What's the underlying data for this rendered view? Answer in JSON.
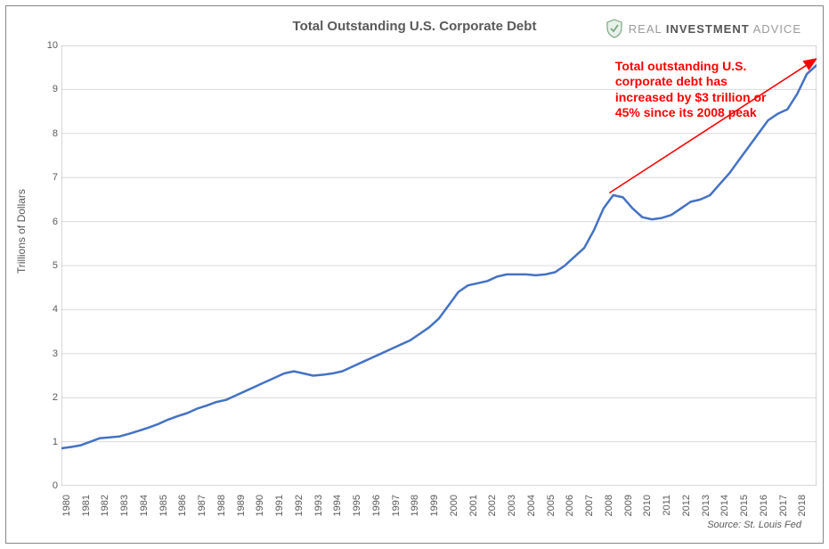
{
  "chart": {
    "type": "line",
    "title": "Total Outstanding U.S. Corporate Debt",
    "title_fontsize": 15,
    "title_color": "#5a5a5a",
    "ylabel": "Trillions of Dollars",
    "ylabel_fontsize": 12,
    "background_color": "#ffffff",
    "frame_border_color": "#888888",
    "plot_border_color": "#b0b0b0",
    "grid_color": "#d9d9d9",
    "tick_color": "#b0b0b0",
    "tick_label_color": "#5a5a5a",
    "tick_label_fontsize": 11,
    "line_color": "#4472c4",
    "line_width": 2.5,
    "xlim": [
      1980,
      2019
    ],
    "ylim": [
      0,
      10
    ],
    "ytick_step": 1,
    "x_categories": [
      "1980",
      "1981",
      "1982",
      "1983",
      "1984",
      "1985",
      "1986",
      "1987",
      "1988",
      "1989",
      "1990",
      "1991",
      "1992",
      "1993",
      "1994",
      "1995",
      "1996",
      "1997",
      "1998",
      "1999",
      "2000",
      "2001",
      "2002",
      "2003",
      "2004",
      "2005",
      "2006",
      "2007",
      "2008",
      "2009",
      "2010",
      "2011",
      "2012",
      "2013",
      "2014",
      "2015",
      "2016",
      "2017",
      "2018"
    ],
    "series": {
      "x": [
        1980,
        1980.5,
        1981,
        1981.5,
        1982,
        1982.5,
        1983,
        1983.5,
        1984,
        1984.5,
        1985,
        1985.5,
        1986,
        1986.5,
        1987,
        1987.5,
        1988,
        1988.5,
        1989,
        1989.5,
        1990,
        1990.5,
        1991,
        1991.5,
        1992,
        1992.5,
        1993,
        1993.5,
        1994,
        1994.5,
        1995,
        1995.5,
        1996,
        1996.5,
        1997,
        1997.5,
        1998,
        1998.5,
        1999,
        1999.5,
        2000,
        2000.5,
        2001,
        2001.5,
        2002,
        2002.5,
        2003,
        2003.5,
        2004,
        2004.5,
        2005,
        2005.5,
        2006,
        2006.5,
        2007,
        2007.5,
        2008,
        2008.5,
        2009,
        2009.5,
        2010,
        2010.5,
        2011,
        2011.5,
        2012,
        2012.5,
        2013,
        2013.5,
        2014,
        2014.5,
        2015,
        2015.5,
        2016,
        2016.5,
        2017,
        2017.5,
        2018,
        2018.5,
        2019
      ],
      "y": [
        0.85,
        0.88,
        0.92,
        1.0,
        1.08,
        1.1,
        1.12,
        1.18,
        1.25,
        1.32,
        1.4,
        1.5,
        1.58,
        1.65,
        1.75,
        1.82,
        1.9,
        1.95,
        2.05,
        2.15,
        2.25,
        2.35,
        2.45,
        2.55,
        2.6,
        2.55,
        2.5,
        2.52,
        2.55,
        2.6,
        2.7,
        2.8,
        2.9,
        3.0,
        3.1,
        3.2,
        3.3,
        3.45,
        3.6,
        3.8,
        4.1,
        4.4,
        4.55,
        4.6,
        4.65,
        4.75,
        4.8,
        4.8,
        4.8,
        4.78,
        4.8,
        4.85,
        5.0,
        5.2,
        5.4,
        5.8,
        6.3,
        6.6,
        6.55,
        6.3,
        6.1,
        6.05,
        6.08,
        6.15,
        6.3,
        6.45,
        6.5,
        6.6,
        6.85,
        7.1,
        7.4,
        7.7,
        8.0,
        8.3,
        8.45,
        8.55,
        8.9,
        9.35,
        9.55
      ]
    },
    "annotation": {
      "text_lines": [
        "Total outstanding U.S.",
        "corporate debt has",
        "increased by $3 trillion or",
        "45% since its 2008 peak"
      ],
      "color": "#ff0000",
      "fontsize": 14,
      "pos_year": 2008.6,
      "pos_value": 9.7,
      "arrow": {
        "x1_year": 2008.3,
        "y1_value": 6.65,
        "x2_year": 2019.0,
        "y2_value": 9.7,
        "color": "#ff0000",
        "width": 1.6
      }
    },
    "source": "Source: St. Louis Fed",
    "logo": {
      "word1": "REAL",
      "word2": "INVESTMENT",
      "word3": "ADVICE",
      "shield_fill": "#e8f0ea",
      "shield_stroke": "#7aa77f",
      "check_color": "#7aa77f"
    }
  }
}
